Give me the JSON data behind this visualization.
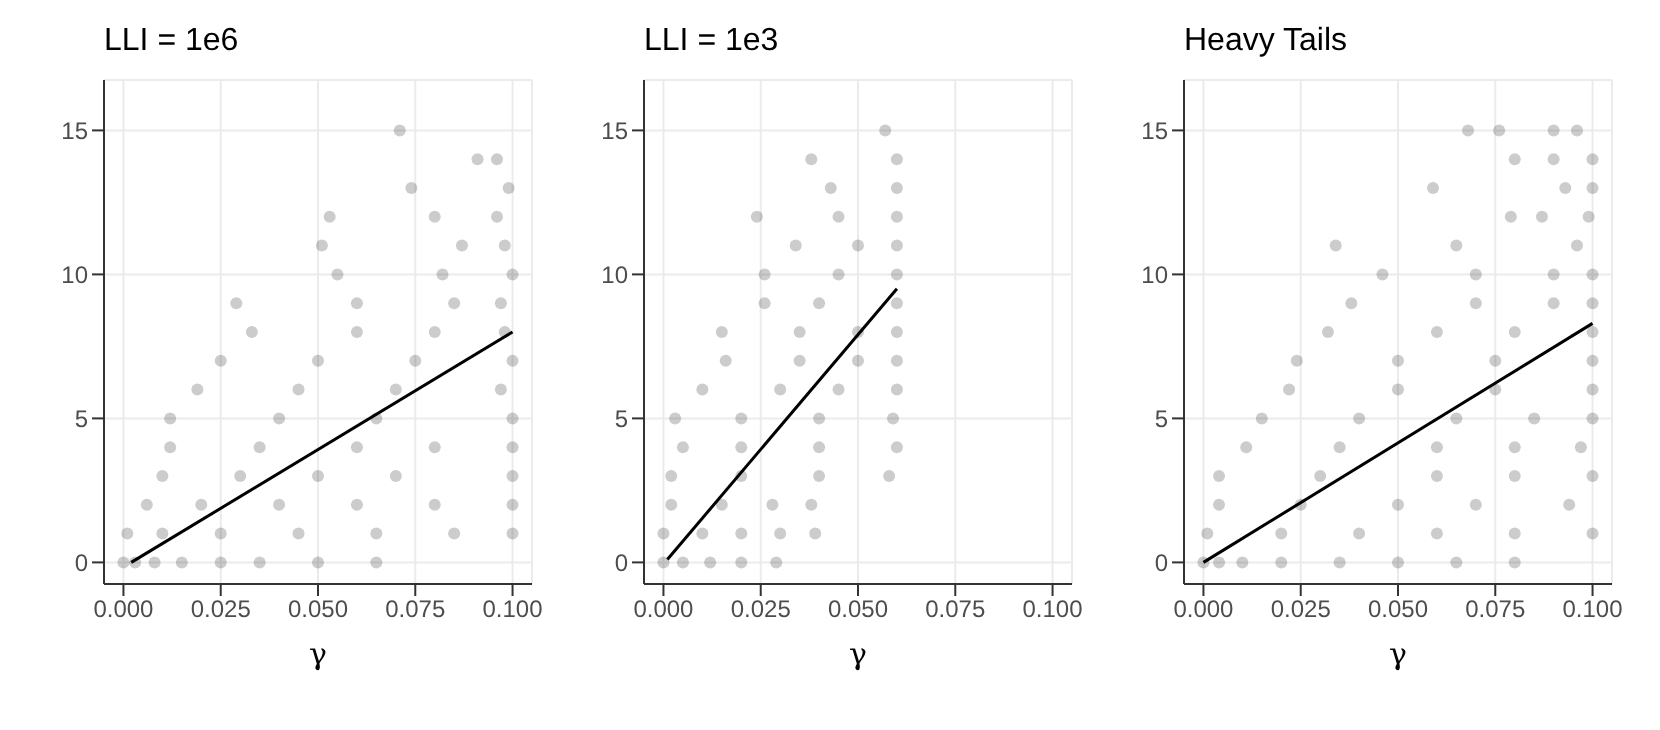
{
  "chart_data": [
    {
      "type": "scatter",
      "title": "LLI = 1e6",
      "xlabel": "γ",
      "xlim": [
        -0.005,
        0.105
      ],
      "ylim": [
        -0.75,
        16.75
      ],
      "xticks": [
        {
          "value": 0,
          "label": "0.000"
        },
        {
          "value": 0.025,
          "label": "0.025"
        },
        {
          "value": 0.05,
          "label": "0.050"
        },
        {
          "value": 0.075,
          "label": "0.075"
        },
        {
          "value": 0.1,
          "label": "0.100"
        }
      ],
      "yticks": [
        0,
        5,
        10,
        15
      ],
      "grid": true,
      "series": [
        {
          "marker": "circle",
          "color": "#000000",
          "x": [
            0,
            0.003,
            0.008,
            0.015,
            0.025,
            0.035,
            0.05,
            0.065,
            0.001,
            0.01,
            0.025,
            0.045,
            0.065,
            0.085,
            0.1,
            0.006,
            0.02,
            0.04,
            0.06,
            0.08,
            0.1,
            0.01,
            0.03,
            0.05,
            0.07,
            0.1,
            0.012,
            0.035,
            0.06,
            0.08,
            0.1,
            0.012,
            0.04,
            0.065,
            0.1,
            0.019,
            0.045,
            0.07,
            0.097,
            0.025,
            0.05,
            0.075,
            0.1,
            0.033,
            0.06,
            0.08,
            0.098,
            0.029,
            0.06,
            0.085,
            0.097,
            0.055,
            0.082,
            0.1,
            0.051,
            0.087,
            0.098,
            0.053,
            0.08,
            0.096,
            0.074,
            0.099,
            0.091,
            0.096,
            0.071
          ],
          "values": [
            0,
            0,
            0,
            0,
            0,
            0,
            0,
            0,
            1,
            1,
            1,
            1,
            1,
            1,
            1,
            2,
            2,
            2,
            2,
            2,
            2,
            3,
            3,
            3,
            3,
            3,
            4,
            4,
            4,
            4,
            4,
            5,
            5,
            5,
            5,
            6,
            6,
            6,
            6,
            7,
            7,
            7,
            7,
            8,
            8,
            8,
            8,
            9,
            9,
            9,
            9,
            10,
            10,
            10,
            11,
            11,
            11,
            12,
            12,
            12,
            13,
            13,
            14,
            14,
            15
          ]
        },
        {
          "type": "line",
          "marker": "none",
          "color": "#000000",
          "x": [
            0.002,
            0.1
          ],
          "values": [
            0,
            8
          ]
        }
      ]
    },
    {
      "type": "scatter",
      "title": "LLI = 1e3",
      "xlabel": "γ",
      "xlim": [
        -0.005,
        0.105
      ],
      "ylim": [
        -0.75,
        16.75
      ],
      "xticks": [
        {
          "value": 0,
          "label": "0.000"
        },
        {
          "value": 0.025,
          "label": "0.025"
        },
        {
          "value": 0.05,
          "label": "0.050"
        },
        {
          "value": 0.075,
          "label": "0.075"
        },
        {
          "value": 0.1,
          "label": "0.100"
        }
      ],
      "yticks": [
        0,
        5,
        10,
        15
      ],
      "grid": true,
      "series": [
        {
          "marker": "circle",
          "color": "#000000",
          "x": [
            0,
            0.005,
            0.012,
            0.02,
            0.029,
            0,
            0.01,
            0.02,
            0.03,
            0.039,
            0.002,
            0.015,
            0.028,
            0.038,
            0.002,
            0.02,
            0.04,
            0.058,
            0.005,
            0.02,
            0.04,
            0.06,
            0.003,
            0.02,
            0.04,
            0.059,
            0.01,
            0.03,
            0.045,
            0.06,
            0.016,
            0.035,
            0.05,
            0.06,
            0.015,
            0.035,
            0.05,
            0.06,
            0.026,
            0.04,
            0.06,
            0.026,
            0.045,
            0.06,
            0.034,
            0.05,
            0.06,
            0.024,
            0.045,
            0.06,
            0.043,
            0.06,
            0.038,
            0.06,
            0.057
          ],
          "values": [
            0,
            0,
            0,
            0,
            0,
            1,
            1,
            1,
            1,
            1,
            2,
            2,
            2,
            2,
            3,
            3,
            3,
            3,
            4,
            4,
            4,
            4,
            5,
            5,
            5,
            5,
            6,
            6,
            6,
            6,
            7,
            7,
            7,
            7,
            8,
            8,
            8,
            8,
            9,
            9,
            9,
            10,
            10,
            10,
            11,
            11,
            11,
            12,
            12,
            12,
            13,
            13,
            14,
            14,
            15
          ]
        },
        {
          "type": "line",
          "marker": "none",
          "color": "#000000",
          "x": [
            0.001,
            0.06
          ],
          "values": [
            0.1,
            9.5
          ]
        }
      ]
    },
    {
      "type": "scatter",
      "title": "Heavy Tails",
      "xlabel": "γ",
      "xlim": [
        -0.005,
        0.105
      ],
      "ylim": [
        -0.75,
        16.75
      ],
      "xticks": [
        {
          "value": 0,
          "label": "0.000"
        },
        {
          "value": 0.025,
          "label": "0.025"
        },
        {
          "value": 0.05,
          "label": "0.050"
        },
        {
          "value": 0.075,
          "label": "0.075"
        },
        {
          "value": 0.1,
          "label": "0.100"
        }
      ],
      "yticks": [
        0,
        5,
        10,
        15
      ],
      "grid": true,
      "series": [
        {
          "marker": "circle",
          "color": "#000000",
          "x": [
            0,
            0.004,
            0.01,
            0.02,
            0.035,
            0.05,
            0.065,
            0.08,
            0.001,
            0.02,
            0.04,
            0.06,
            0.08,
            0.1,
            0.004,
            0.025,
            0.05,
            0.07,
            0.094,
            0.004,
            0.03,
            0.06,
            0.08,
            0.1,
            0.011,
            0.035,
            0.06,
            0.08,
            0.097,
            0.015,
            0.04,
            0.065,
            0.085,
            0.1,
            0.022,
            0.05,
            0.075,
            0.1,
            0.024,
            0.05,
            0.075,
            0.1,
            0.032,
            0.06,
            0.08,
            0.1,
            0.038,
            0.07,
            0.09,
            0.1,
            0.046,
            0.07,
            0.09,
            0.1,
            0.034,
            0.065,
            0.096,
            0.079,
            0.087,
            0.099,
            0.059,
            0.093,
            0.1,
            0.08,
            0.09,
            0.1,
            0.068,
            0.076,
            0.09,
            0.096
          ],
          "values": [
            0,
            0,
            0,
            0,
            0,
            0,
            0,
            0,
            1,
            1,
            1,
            1,
            1,
            1,
            2,
            2,
            2,
            2,
            2,
            3,
            3,
            3,
            3,
            3,
            4,
            4,
            4,
            4,
            4,
            5,
            5,
            5,
            5,
            5,
            6,
            6,
            6,
            6,
            7,
            7,
            7,
            7,
            8,
            8,
            8,
            8,
            9,
            9,
            9,
            9,
            10,
            10,
            10,
            10,
            11,
            11,
            11,
            12,
            12,
            12,
            13,
            13,
            13,
            14,
            14,
            14,
            15,
            15,
            15,
            15
          ]
        },
        {
          "type": "line",
          "marker": "none",
          "color": "#000000",
          "x": [
            0,
            0.1
          ],
          "values": [
            0,
            8.3
          ]
        }
      ]
    }
  ]
}
